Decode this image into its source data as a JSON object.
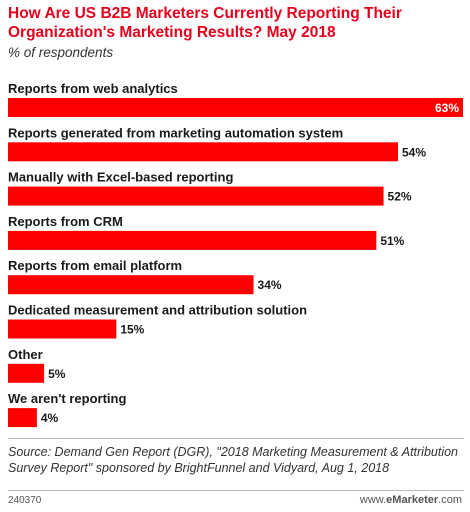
{
  "header": {
    "title": "How Are US B2B Marketers Currently Reporting Their Organization's Marketing Results? May 2018",
    "subtitle": "% of respondents"
  },
  "chart_data": {
    "type": "bar",
    "orientation": "horizontal",
    "categories": [
      "Reports from web analytics",
      "Reports generated from marketing automation system",
      "Manually with Excel-based reporting",
      "Reports from CRM",
      "Reports from email platform",
      "Dedicated measurement and attribution solution",
      "Other",
      "We aren't reporting"
    ],
    "values": [
      63,
      54,
      52,
      51,
      34,
      15,
      5,
      4
    ],
    "value_labels": [
      "63%",
      "54%",
      "52%",
      "51%",
      "34%",
      "15%",
      "5%",
      "4%"
    ],
    "bar_color": "#ff0000",
    "xlim": [
      0,
      63
    ],
    "grid": false
  },
  "footer": {
    "source": "Source: Demand Gen Report (DGR), \"2018 Marketing Measurement & Attribution Survey Report\" sponsored by BrightFunnel and Vidyard, Aug 1, 2018",
    "chart_id": "240370",
    "brand_prefix": "www.",
    "brand_e": "e",
    "brand_name": "Marketer",
    "brand_suffix": ".com"
  }
}
